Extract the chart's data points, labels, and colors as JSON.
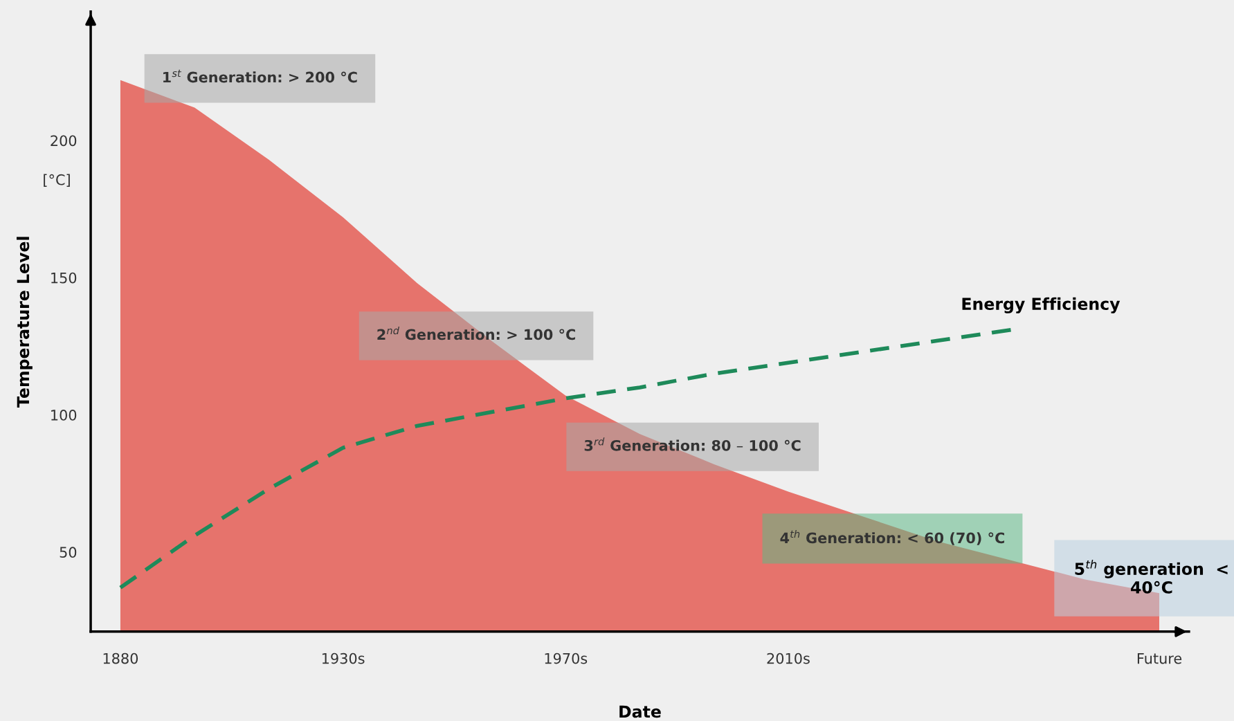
{
  "chart_data": {
    "type": "area",
    "xlabel": "Date",
    "ylabel": "Temperature Level",
    "categories": [
      "1880",
      null,
      null,
      "1930s",
      null,
      null,
      "1970s",
      null,
      null,
      "2010s",
      null,
      null,
      null,
      null,
      "Future"
    ],
    "ylim": [
      21,
      247
    ],
    "yticks": [
      50,
      100,
      150,
      200
    ],
    "grid": false,
    "legend": false,
    "series": [
      {
        "color": "#e6736c",
        "values": [
          222,
          212,
          193,
          172,
          148,
          127,
          107,
          93,
          82,
          72,
          63,
          54,
          47,
          40,
          35
        ]
      },
      {
        "type": "line",
        "name": "Energy Efficiency",
        "color": "#1e8a5a",
        "line_style": "dashed",
        "marker": "none",
        "values": [
          37,
          56,
          73,
          88,
          96,
          101,
          106,
          110,
          115,
          119,
          123,
          127,
          131,
          null,
          null
        ]
      }
    ],
    "annotations": [
      "[°C]",
      "1$^{st}$ Generation: > 200 °C",
      "2$^{nd}$ Generation: > 100 °C",
      "3$^{rd}$ Generation: 80 – 100 °C",
      "4$^{th}$ Generation: < 60 (70) °C",
      "5$^{th}$ generation  <\n40°C"
    ]
  }
}
